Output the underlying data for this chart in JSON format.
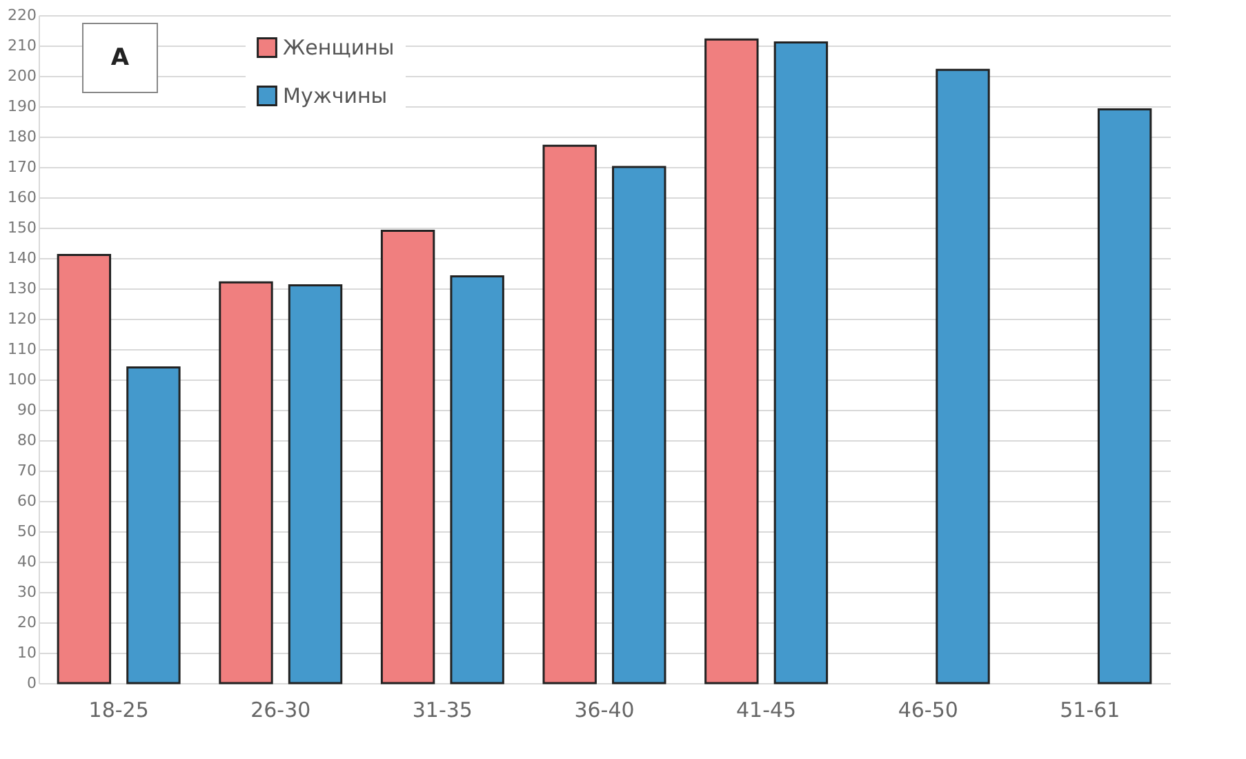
{
  "chart_data": {
    "type": "bar",
    "categories": [
      "18-25",
      "26-30",
      "31-35",
      "36-40",
      "41-45",
      "46-50",
      "51-61"
    ],
    "series": [
      {
        "name": "Женщины",
        "color": "#f07f7f",
        "values": [
          141,
          132,
          149,
          177,
          212,
          null,
          null
        ]
      },
      {
        "name": "Мужчины",
        "color": "#4499cc",
        "values": [
          104,
          131,
          134,
          170,
          211,
          202,
          189
        ]
      }
    ],
    "ylim": [
      0,
      220
    ],
    "yticks": [
      0,
      10,
      20,
      30,
      40,
      50,
      60,
      70,
      80,
      90,
      100,
      110,
      120,
      130,
      140,
      150,
      160,
      170,
      180,
      190,
      200,
      210,
      220
    ],
    "grid": "y",
    "legend": "top left",
    "annotations": [
      "A"
    ]
  }
}
